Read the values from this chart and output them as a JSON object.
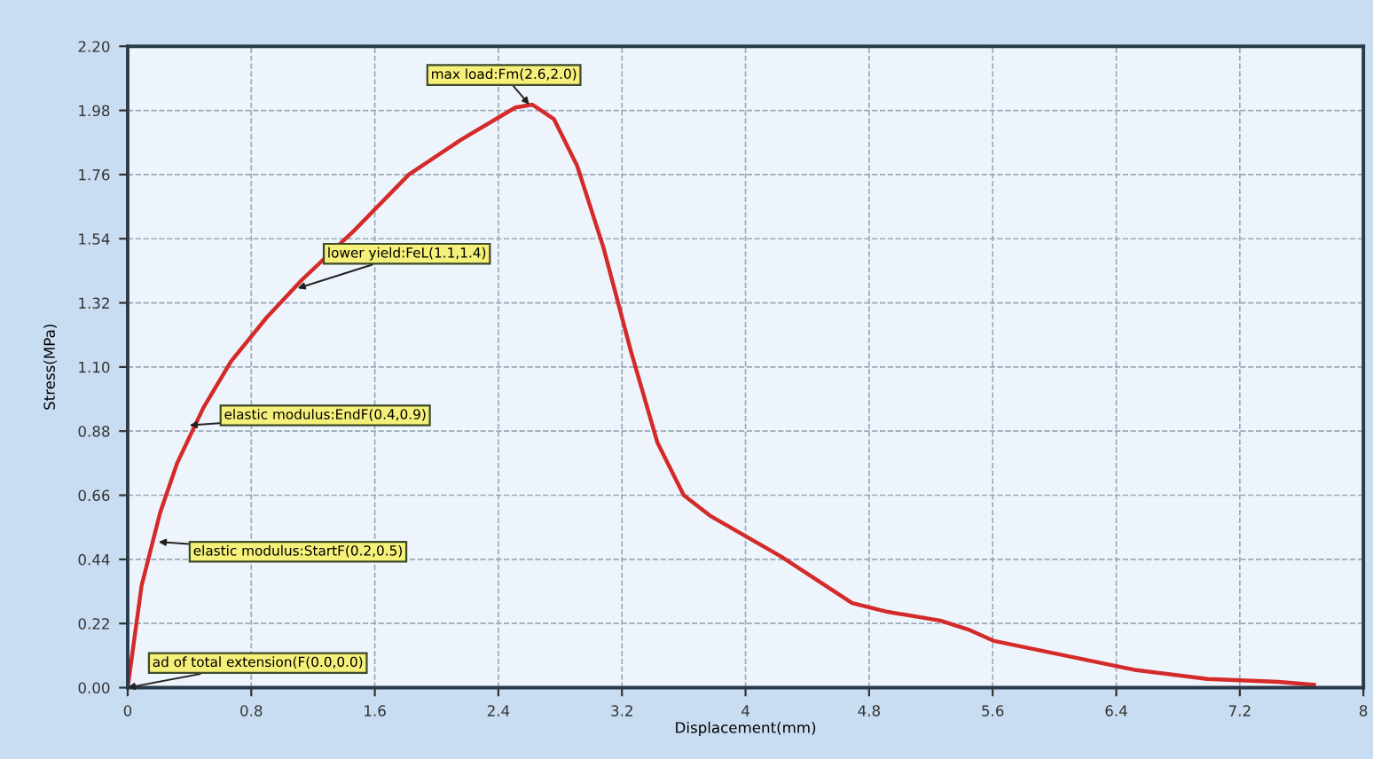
{
  "chart_data": {
    "type": "line",
    "xlabel": "Displacement(mm)",
    "ylabel": "Stress(MPa)",
    "x": [
      0,
      0.09,
      0.21,
      0.32,
      0.49,
      0.67,
      0.9,
      1.13,
      1.47,
      1.82,
      2.16,
      2.51,
      2.62,
      2.76,
      2.91,
      3.08,
      3.26,
      3.43,
      3.6,
      3.77,
      4.0,
      4.23,
      4.46,
      4.69,
      4.92,
      5.26,
      5.44,
      5.61,
      6.07,
      6.53,
      6.99,
      7.45,
      7.68
    ],
    "series": [
      {
        "color": "#d42a2a",
        "values": [
          0,
          0.35,
          0.6,
          0.77,
          0.96,
          1.12,
          1.27,
          1.4,
          1.57,
          1.76,
          1.88,
          1.99,
          2.0,
          1.95,
          1.79,
          1.51,
          1.15,
          0.84,
          0.66,
          0.59,
          0.52,
          0.45,
          0.37,
          0.29,
          0.26,
          0.23,
          0.2,
          0.16,
          0.11,
          0.06,
          0.03,
          0.02,
          0.01
        ]
      }
    ],
    "xlim": [
      0,
      8
    ],
    "ylim": [
      0,
      2.2
    ],
    "xticks": [
      0,
      0.8,
      1.6,
      2.4,
      3.2,
      4,
      4.8,
      5.6,
      6.4,
      7.2,
      8
    ],
    "yticks": [
      {
        "value": 0,
        "label": "0.00"
      },
      0.22,
      0.44,
      0.66,
      0.88,
      {
        "value": 1.1,
        "label": "1.10"
      },
      1.32,
      1.54,
      1.76,
      1.98,
      {
        "value": 2.2,
        "label": "2.20"
      }
    ],
    "grid": true,
    "line_style": "solid",
    "marker": "none",
    "annotations": [
      {
        "text": "max load:Fm(2.6,2.0)",
        "x": 2.6,
        "y": 2.0
      },
      {
        "text": "lower yield:FeL(1.1,1.4)",
        "x": 1.1,
        "y": 1.37
      },
      {
        "text": "elastic modulus:EndF(0.4,0.9)",
        "x": 0.4,
        "y": 0.9
      },
      {
        "text": "elastic modulus:StartF(0.2,0.5)",
        "x": 0.2,
        "y": 0.5
      },
      {
        "text": "ad of total extension(F(0.0,0.0)",
        "x": 0.0,
        "y": 0.0
      }
    ]
  }
}
